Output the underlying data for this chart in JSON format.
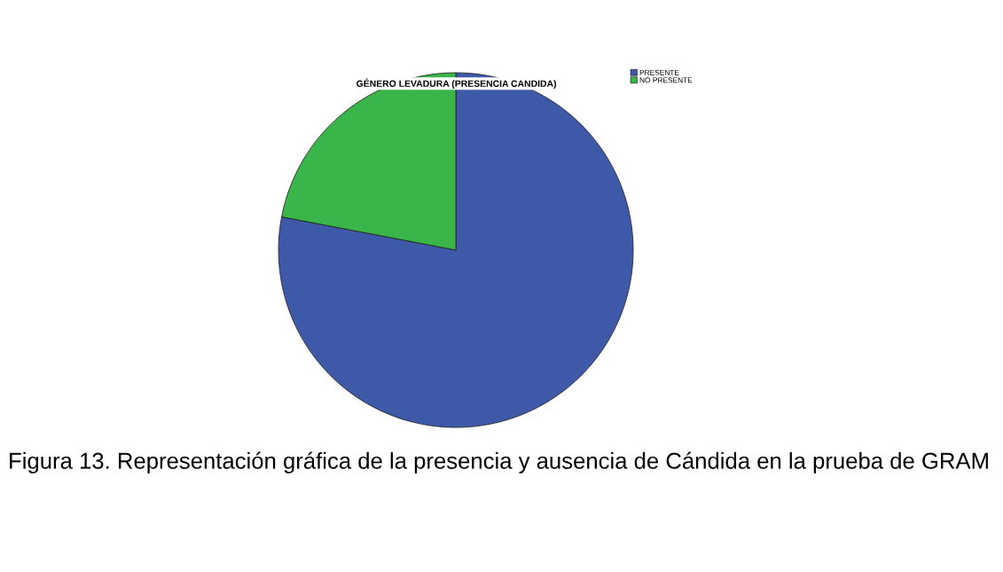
{
  "chart_data": {
    "type": "pie",
    "title": "GÉNERO LEVADURA (PRESENCIA CANDIDA)",
    "categories": [
      "PRESENTE",
      "NO PRESENTE"
    ],
    "values": [
      78,
      22
    ],
    "colors": [
      "#3d59a8",
      "#3ab54a"
    ],
    "legend": "top right",
    "annotations": [
      "Figura 13. Representación gráfica de la presencia y ausencia de Cándida en la prueba de GRAM"
    ]
  }
}
